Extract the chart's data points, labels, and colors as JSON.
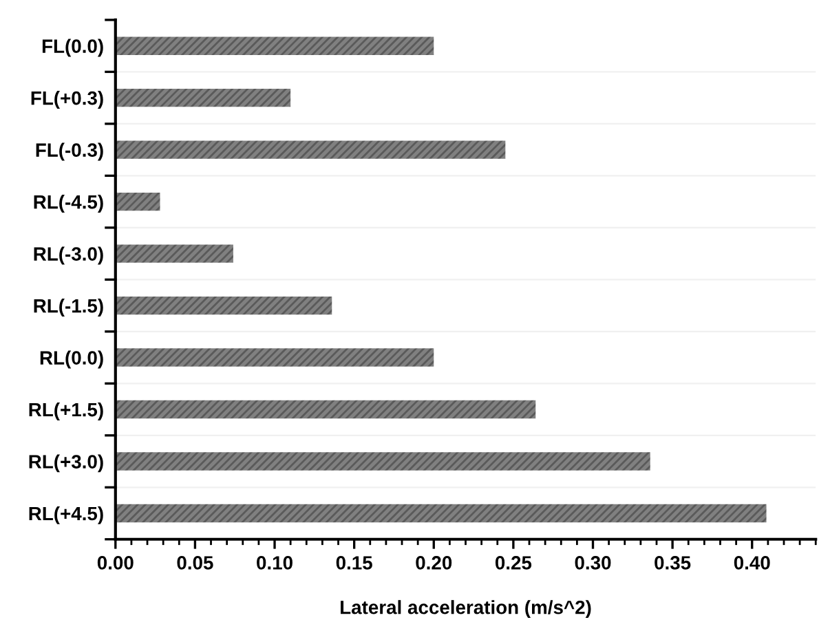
{
  "chart_data": {
    "type": "bar",
    "orientation": "horizontal",
    "xlabel": "Lateral acceleration (m/s^2)",
    "categories": [
      "FL(0.0)",
      "FL(+0.3)",
      "FL(-0.3)",
      "RL(-4.5)",
      "RL(-3.0)",
      "RL(-1.5)",
      "RL(0.0)",
      "RL(+1.5)",
      "RL(+3.0)",
      "RL(+4.5)"
    ],
    "values": [
      0.2,
      0.11,
      0.245,
      0.028,
      0.074,
      0.136,
      0.2,
      0.264,
      0.336,
      0.409
    ],
    "color": "#808080",
    "xlim": [
      0,
      0.44
    ],
    "xticks": [
      {
        "value": 0,
        "label": "0.00"
      },
      {
        "value": 0.05,
        "label": "0.05"
      },
      {
        "value": 0.1,
        "label": "0.10"
      },
      {
        "value": 0.15,
        "label": "0.15"
      },
      {
        "value": 0.2,
        "label": "0.20"
      },
      {
        "value": 0.25,
        "label": "0.25"
      },
      {
        "value": 0.3,
        "label": "0.30"
      },
      {
        "value": 0.35,
        "label": "0.35"
      },
      {
        "value": 0.4,
        "label": "0.40"
      }
    ]
  }
}
